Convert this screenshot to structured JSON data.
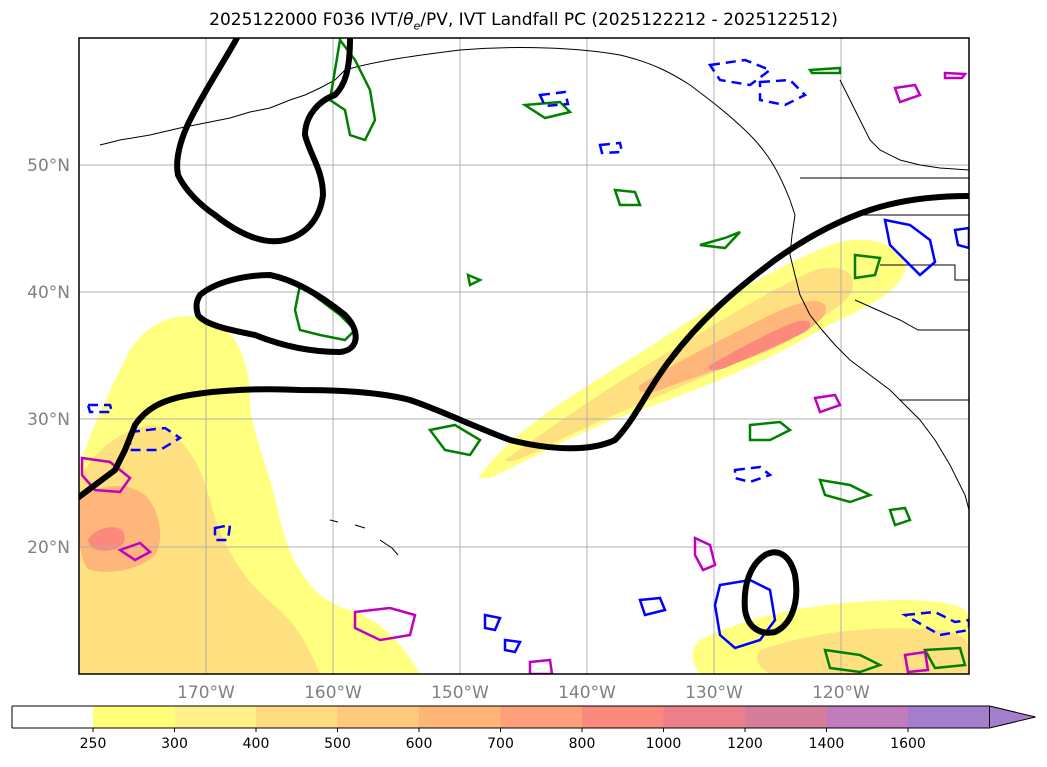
{
  "title": "2025122000 F036 IVT/θe/PV, IVT Landfall PC (2025122212 - 2025122512)",
  "title_parts": {
    "prefix": "2025122000 F036 IVT/",
    "theta": "θ",
    "theta_sub": "e",
    "suffix": "/PV, IVT Landfall PC (2025122212 - 2025122512)"
  },
  "map": {
    "lon_range": [
      -180,
      -110
    ],
    "lat_range": [
      10,
      60
    ],
    "lat_gridlines": [
      20,
      30,
      40,
      50
    ],
    "lon_gridlines": [
      -170,
      -160,
      -150,
      -140,
      -130,
      -120
    ],
    "lat_labels": [
      "20°N",
      "30°N",
      "40°N",
      "50°N"
    ],
    "lon_labels": [
      "170°W",
      "160°W",
      "150°W",
      "140°W",
      "130°W",
      "120°W"
    ],
    "grid": true
  },
  "colorbar": {
    "ticks": [
      "250",
      "300",
      "400",
      "500",
      "600",
      "700",
      "800",
      "1000",
      "1200",
      "1400",
      "1600"
    ],
    "colors": [
      "#ffff78",
      "#fff088",
      "#ffdc80",
      "#ffc87a",
      "#ffb478",
      "#ffa07a",
      "#fb8a7c",
      "#ec7f8a",
      "#d47e9a",
      "#c07cbc",
      "#a47ecc"
    ],
    "extend": "max"
  },
  "colors": {
    "pc_contour": "#000000",
    "theta_e_contour": "#008000",
    "pv_pos_contour": "#0000ff",
    "pv_high_contour": "#c000c0",
    "coastline": "#000000",
    "gridline": "#b0b0b0"
  }
}
